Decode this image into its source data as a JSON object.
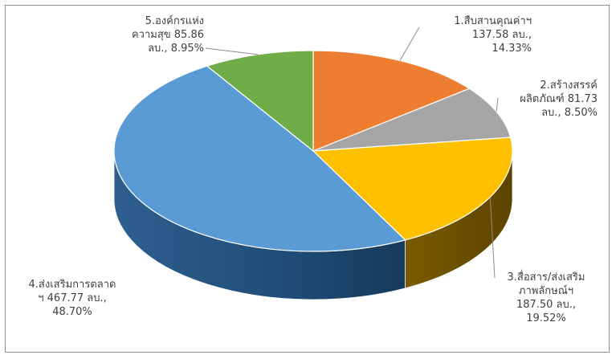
{
  "chart_data": {
    "type": "pie",
    "style": "3d",
    "title": "",
    "slices": [
      {
        "name": "1.สืบสานคุณค่าฯ",
        "value": 137.58,
        "percent": 14.33,
        "color": "#ED7D31",
        "label_lines": [
          "1.สืบสานคุณค่าฯ",
          "137.58 ลบ.,",
          "14.33%"
        ]
      },
      {
        "name": "2.สร้างสรรค์ผลิตภัณฑ์",
        "value": 81.73,
        "percent": 8.5,
        "color": "#A5A5A5",
        "label_lines": [
          "2.สร้างสรรค์",
          "ผลิตภัณฑ์ 81.73",
          "ลบ., 8.50%"
        ]
      },
      {
        "name": "3.สื่อสาร/ส่งเสริมภาพลักษณ์ฯ",
        "value": 187.5,
        "percent": 19.52,
        "color": "#FFC000",
        "label_lines": [
          "3.สื่อสาร/ส่งเสริม",
          "ภาพลักษณ์ฯ",
          "187.50 ลบ.,",
          "19.52%"
        ]
      },
      {
        "name": "4.ส่งเสริมการตลาดฯ",
        "value": 467.77,
        "percent": 48.7,
        "color": "#5B9BD5",
        "label_lines": [
          "4.ส่งเสริมการตลาด",
          "ฯ 467.77 ลบ.,",
          "48.70%"
        ]
      },
      {
        "name": "5.องค์กรแห่งความสุข",
        "value": 85.86,
        "percent": 8.95,
        "color": "#70AD47",
        "label_lines": [
          "5.องค์กรแห่ง",
          "ความสุข 85.86",
          "ลบ., 8.95%"
        ]
      }
    ],
    "legend": "none",
    "data_labels": "outside with leader lines"
  }
}
